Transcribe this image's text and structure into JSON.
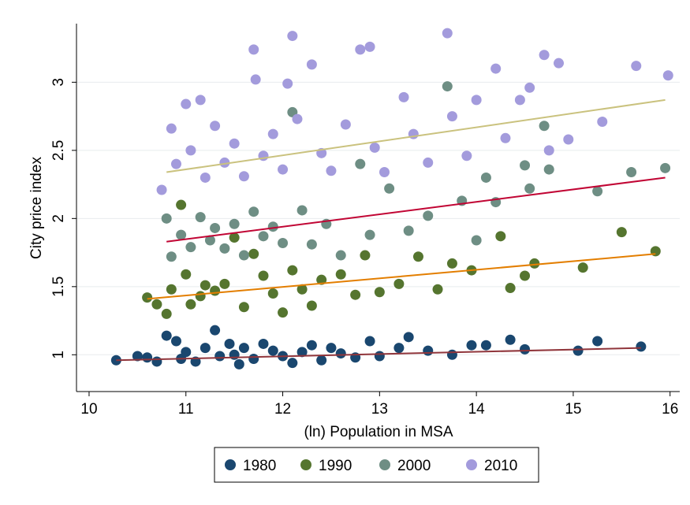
{
  "chart_data": {
    "type": "scatter",
    "ylabel": "City price index",
    "xlabel": "(ln) Population in MSA",
    "xlim": [
      9.87,
      16.1
    ],
    "ylim": [
      0.73,
      3.43
    ],
    "xticks": [
      10,
      11,
      12,
      13,
      14,
      15,
      16
    ],
    "yticks": [
      1,
      1.5,
      2,
      2.5,
      3
    ],
    "grid": true,
    "legend": "bottom",
    "series": [
      {
        "name": "1980",
        "color": "#1a476f",
        "x": [
          10.28,
          10.5,
          10.6,
          10.7,
          10.8,
          10.9,
          10.95,
          11.0,
          11.1,
          11.2,
          11.3,
          11.35,
          11.45,
          11.5,
          11.55,
          11.6,
          11.7,
          11.8,
          11.9,
          12.0,
          12.1,
          12.2,
          12.3,
          12.4,
          12.5,
          12.6,
          12.75,
          12.9,
          13.0,
          13.2,
          13.3,
          13.5,
          13.75,
          13.95,
          14.1,
          14.35,
          14.5,
          15.05,
          15.25,
          15.7
        ],
        "values": [
          0.96,
          0.99,
          0.98,
          0.95,
          1.14,
          1.1,
          0.97,
          1.02,
          0.95,
          1.05,
          1.18,
          0.99,
          1.08,
          1.0,
          0.93,
          1.05,
          0.97,
          1.08,
          1.03,
          0.99,
          0.94,
          1.02,
          1.07,
          0.96,
          1.05,
          1.01,
          0.98,
          1.1,
          0.99,
          1.05,
          1.13,
          1.03,
          1.0,
          1.07,
          1.07,
          1.11,
          1.04,
          1.03,
          1.1,
          1.06
        ]
      },
      {
        "name": "1990",
        "color": "#55752f",
        "x": [
          10.6,
          10.7,
          10.8,
          10.85,
          10.95,
          11.0,
          11.05,
          11.15,
          11.2,
          11.3,
          11.4,
          11.5,
          11.6,
          11.7,
          11.8,
          11.9,
          12.0,
          12.1,
          12.2,
          12.3,
          12.4,
          12.6,
          12.75,
          12.85,
          13.0,
          13.2,
          13.4,
          13.6,
          13.75,
          13.95,
          14.25,
          14.35,
          14.5,
          14.6,
          15.1,
          15.5,
          15.85
        ],
        "values": [
          1.42,
          1.37,
          1.3,
          1.48,
          2.1,
          1.59,
          1.37,
          1.43,
          1.51,
          1.47,
          1.52,
          1.86,
          1.35,
          1.74,
          1.58,
          1.45,
          1.31,
          1.62,
          1.48,
          1.36,
          1.55,
          1.59,
          1.44,
          1.73,
          1.46,
          1.52,
          1.72,
          1.48,
          1.67,
          1.62,
          1.87,
          1.49,
          1.58,
          1.67,
          1.64,
          1.9,
          1.76
        ]
      },
      {
        "name": "2000",
        "color": "#6e8e84",
        "x": [
          10.8,
          10.85,
          10.95,
          11.05,
          11.15,
          11.25,
          11.3,
          11.4,
          11.5,
          11.6,
          11.7,
          11.8,
          11.9,
          12.0,
          12.1,
          12.2,
          12.3,
          12.45,
          12.6,
          12.8,
          12.9,
          13.1,
          13.3,
          13.5,
          13.7,
          13.85,
          14.0,
          14.1,
          14.2,
          14.5,
          14.55,
          14.7,
          14.75,
          15.25,
          15.6,
          15.95
        ],
        "values": [
          2.0,
          1.72,
          1.88,
          1.79,
          2.01,
          1.84,
          1.93,
          1.78,
          1.96,
          1.73,
          2.05,
          1.87,
          1.94,
          1.82,
          2.78,
          2.06,
          1.81,
          1.96,
          1.73,
          2.4,
          1.88,
          2.22,
          1.91,
          2.02,
          2.97,
          2.13,
          1.84,
          2.3,
          2.12,
          2.39,
          2.22,
          2.68,
          2.36,
          2.2,
          2.34,
          2.37
        ]
      },
      {
        "name": "2010",
        "color": "#a39bdc",
        "x": [
          10.75,
          10.85,
          10.9,
          11.0,
          11.05,
          11.15,
          11.2,
          11.3,
          11.4,
          11.5,
          11.6,
          11.7,
          11.72,
          11.8,
          11.9,
          12.0,
          12.05,
          12.1,
          12.15,
          12.3,
          12.4,
          12.5,
          12.65,
          12.8,
          12.9,
          12.95,
          13.05,
          13.25,
          13.35,
          13.5,
          13.7,
          13.75,
          13.9,
          14.0,
          14.2,
          14.3,
          14.45,
          14.55,
          14.7,
          14.75,
          14.85,
          14.95,
          15.3,
          15.65,
          15.98
        ],
        "values": [
          2.21,
          2.66,
          2.4,
          2.84,
          2.5,
          2.87,
          2.3,
          2.68,
          2.41,
          2.55,
          2.31,
          3.24,
          3.02,
          2.46,
          2.62,
          2.36,
          2.99,
          3.34,
          2.73,
          3.13,
          2.48,
          2.35,
          2.69,
          3.24,
          3.26,
          2.52,
          2.34,
          2.89,
          2.62,
          2.41,
          3.36,
          2.75,
          2.46,
          2.87,
          3.1,
          2.59,
          2.87,
          2.96,
          3.2,
          2.5,
          3.14,
          2.58,
          2.71,
          3.12,
          3.05
        ]
      }
    ],
    "fits": [
      {
        "color": "#90353b",
        "x": [
          10.28,
          15.7
        ],
        "values": [
          0.96,
          1.05
        ]
      },
      {
        "color": "#e37e00",
        "x": [
          10.6,
          15.85
        ],
        "values": [
          1.41,
          1.74
        ]
      },
      {
        "color": "#c10534",
        "x": [
          10.8,
          15.95
        ],
        "values": [
          1.83,
          2.3
        ]
      },
      {
        "color": "#cac27e",
        "x": [
          10.8,
          15.95
        ],
        "values": [
          2.34,
          2.87
        ]
      }
    ]
  }
}
